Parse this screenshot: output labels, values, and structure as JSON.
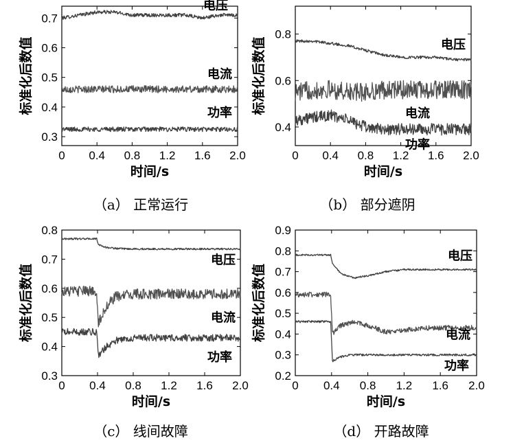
{
  "chart_data": [
    {
      "panel": "a",
      "type": "line",
      "caption": "（a） 正常运行",
      "xlabel": "时间/s",
      "ylabel": "标准化后数值",
      "xlim": [
        0,
        2.0
      ],
      "ylim": [
        0.27,
        0.74
      ],
      "xticks": [
        0,
        0.4,
        0.8,
        1.2,
        1.6,
        2.0
      ],
      "xtick_labels": [
        "0",
        "0.4",
        "0.8",
        "1.2",
        "1.6",
        "2.0"
      ],
      "yticks": [
        0.3,
        0.4,
        0.5,
        0.6,
        0.7
      ],
      "ytick_labels": [
        "0.3",
        "0.4",
        "0.5",
        "0.6",
        "0.7"
      ],
      "series": [
        {
          "name": "电压",
          "x": [
            0,
            0.2,
            0.4,
            0.6,
            0.8,
            1.0,
            1.2,
            1.4,
            1.6,
            1.8,
            2.0
          ],
          "values": [
            0.7,
            0.71,
            0.72,
            0.72,
            0.71,
            0.71,
            0.71,
            0.71,
            0.7,
            0.71,
            0.71
          ],
          "noise": 0.006
        },
        {
          "name": "电流",
          "x": [
            0,
            0.4,
            0.8,
            1.2,
            1.6,
            2.0
          ],
          "values": [
            0.46,
            0.46,
            0.46,
            0.46,
            0.46,
            0.46
          ],
          "noise": 0.012
        },
        {
          "name": "功率",
          "x": [
            0,
            0.4,
            0.8,
            1.2,
            1.6,
            2.0
          ],
          "values": [
            0.325,
            0.325,
            0.325,
            0.325,
            0.325,
            0.325
          ],
          "noise": 0.008
        }
      ]
    },
    {
      "panel": "b",
      "type": "line",
      "caption": "（b） 部分遮阴",
      "xlabel": "时间/s",
      "ylabel": "标准化后数值",
      "xlim": [
        0,
        2.0
      ],
      "ylim": [
        0.32,
        0.92
      ],
      "xticks": [
        0,
        0.4,
        0.8,
        1.2,
        1.6,
        2.0
      ],
      "xtick_labels": [
        "0",
        "0.4",
        "0.8",
        "1.2",
        "1.6",
        "2.0"
      ],
      "yticks": [
        0.4,
        0.6,
        0.8
      ],
      "ytick_labels": [
        "0.4",
        "0.6",
        "0.8"
      ],
      "series": [
        {
          "name": "电压",
          "x": [
            0,
            0.2,
            0.4,
            0.6,
            0.8,
            1.0,
            1.2,
            1.4,
            1.6,
            1.8,
            2.0
          ],
          "values": [
            0.77,
            0.77,
            0.76,
            0.75,
            0.73,
            0.71,
            0.7,
            0.7,
            0.7,
            0.69,
            0.69
          ],
          "noise": 0.006
        },
        {
          "name": "电流",
          "x": [
            0,
            0.2,
            0.4,
            0.6,
            0.8,
            1.0,
            1.2,
            1.4,
            1.6,
            1.8,
            2.0
          ],
          "values": [
            0.55,
            0.56,
            0.56,
            0.55,
            0.55,
            0.56,
            0.56,
            0.56,
            0.56,
            0.56,
            0.56
          ],
          "noise": 0.04
        },
        {
          "name": "功率",
          "x": [
            0,
            0.2,
            0.4,
            0.6,
            0.8,
            1.0,
            1.2,
            1.4,
            1.6,
            1.8,
            2.0
          ],
          "values": [
            0.43,
            0.44,
            0.45,
            0.43,
            0.4,
            0.39,
            0.39,
            0.39,
            0.39,
            0.39,
            0.39
          ],
          "noise": 0.025
        }
      ]
    },
    {
      "panel": "c",
      "type": "line",
      "caption": "（c） 线间故障",
      "xlabel": "时间/s",
      "ylabel": "标准化后数值",
      "xlim": [
        0,
        2.0
      ],
      "ylim": [
        0.3,
        0.8
      ],
      "xticks": [
        0,
        0.4,
        0.8,
        1.2,
        1.6,
        2.0
      ],
      "xtick_labels": [
        "0",
        "0.4",
        "0.8",
        "1.2",
        "1.6",
        "2.0"
      ],
      "yticks": [
        0.3,
        0.4,
        0.5,
        0.6,
        0.7,
        0.8
      ],
      "ytick_labels": [
        "0.3",
        "0.4",
        "0.5",
        "0.6",
        "0.7",
        "0.8"
      ],
      "series": [
        {
          "name": "电压",
          "x": [
            0,
            0.39,
            0.41,
            0.5,
            0.7,
            1.0,
            1.5,
            2.0
          ],
          "values": [
            0.77,
            0.77,
            0.75,
            0.74,
            0.735,
            0.735,
            0.735,
            0.735
          ],
          "noise": 0.003
        },
        {
          "name": "电流",
          "x": [
            0,
            0.39,
            0.41,
            0.5,
            0.6,
            0.8,
            1.2,
            1.6,
            2.0
          ],
          "values": [
            0.59,
            0.59,
            0.48,
            0.54,
            0.57,
            0.58,
            0.58,
            0.58,
            0.58
          ],
          "noise": 0.018
        },
        {
          "name": "功率",
          "x": [
            0,
            0.39,
            0.41,
            0.5,
            0.6,
            0.8,
            1.2,
            1.6,
            2.0
          ],
          "values": [
            0.45,
            0.45,
            0.37,
            0.4,
            0.42,
            0.43,
            0.43,
            0.43,
            0.43
          ],
          "noise": 0.012
        }
      ]
    },
    {
      "panel": "d",
      "type": "line",
      "caption": "（d） 开路故障",
      "xlabel": "时间/s",
      "ylabel": "标准化后数值",
      "xlim": [
        0,
        2.0
      ],
      "ylim": [
        0.2,
        0.9
      ],
      "xticks": [
        0,
        0.4,
        0.8,
        1.2,
        1.6,
        2.0
      ],
      "xtick_labels": [
        "0",
        "0.4",
        "0.8",
        "1.2",
        "1.6",
        "2.0"
      ],
      "yticks": [
        0.2,
        0.3,
        0.4,
        0.5,
        0.6,
        0.7,
        0.8,
        0.9
      ],
      "ytick_labels": [
        "0.2",
        "0.3",
        "0.4",
        "0.5",
        "0.6",
        "0.7",
        "0.8",
        "0.9"
      ],
      "series": [
        {
          "name": "电压",
          "x": [
            0,
            0.39,
            0.41,
            0.5,
            0.65,
            0.8,
            1.0,
            1.2,
            1.5,
            2.0
          ],
          "values": [
            0.78,
            0.78,
            0.74,
            0.69,
            0.67,
            0.68,
            0.7,
            0.71,
            0.71,
            0.71
          ],
          "noise": 0.004
        },
        {
          "name": "电流",
          "x": [
            0,
            0.39,
            0.41,
            0.5,
            0.65,
            0.8,
            1.0,
            1.2,
            1.5,
            2.0
          ],
          "values": [
            0.59,
            0.59,
            0.4,
            0.44,
            0.46,
            0.44,
            0.41,
            0.42,
            0.43,
            0.43
          ],
          "noise": 0.012
        },
        {
          "name": "功率",
          "x": [
            0,
            0.39,
            0.41,
            0.5,
            0.6,
            0.8,
            1.2,
            1.6,
            2.0
          ],
          "values": [
            0.46,
            0.46,
            0.27,
            0.29,
            0.3,
            0.3,
            0.3,
            0.3,
            0.3
          ],
          "noise": 0.005
        }
      ]
    }
  ]
}
